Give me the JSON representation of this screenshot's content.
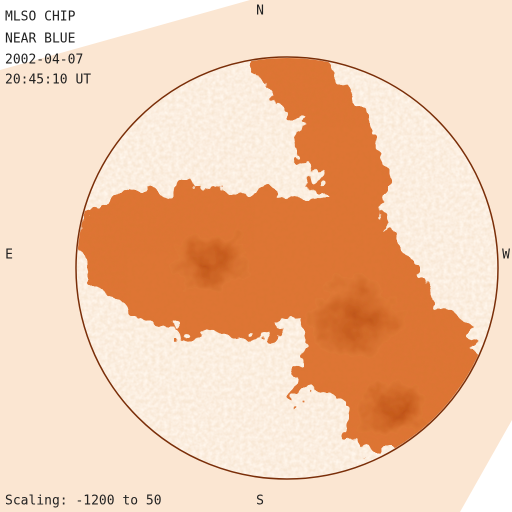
{
  "header": {
    "lines": [
      "MLSO CHIP",
      "NEAR BLUE",
      "2002-04-07",
      "20:45:10 UT"
    ]
  },
  "compass": {
    "north": "N",
    "east": "E",
    "west": "W",
    "south": "S"
  },
  "footer": {
    "scaling": "Scaling: -1200 to 50"
  }
}
